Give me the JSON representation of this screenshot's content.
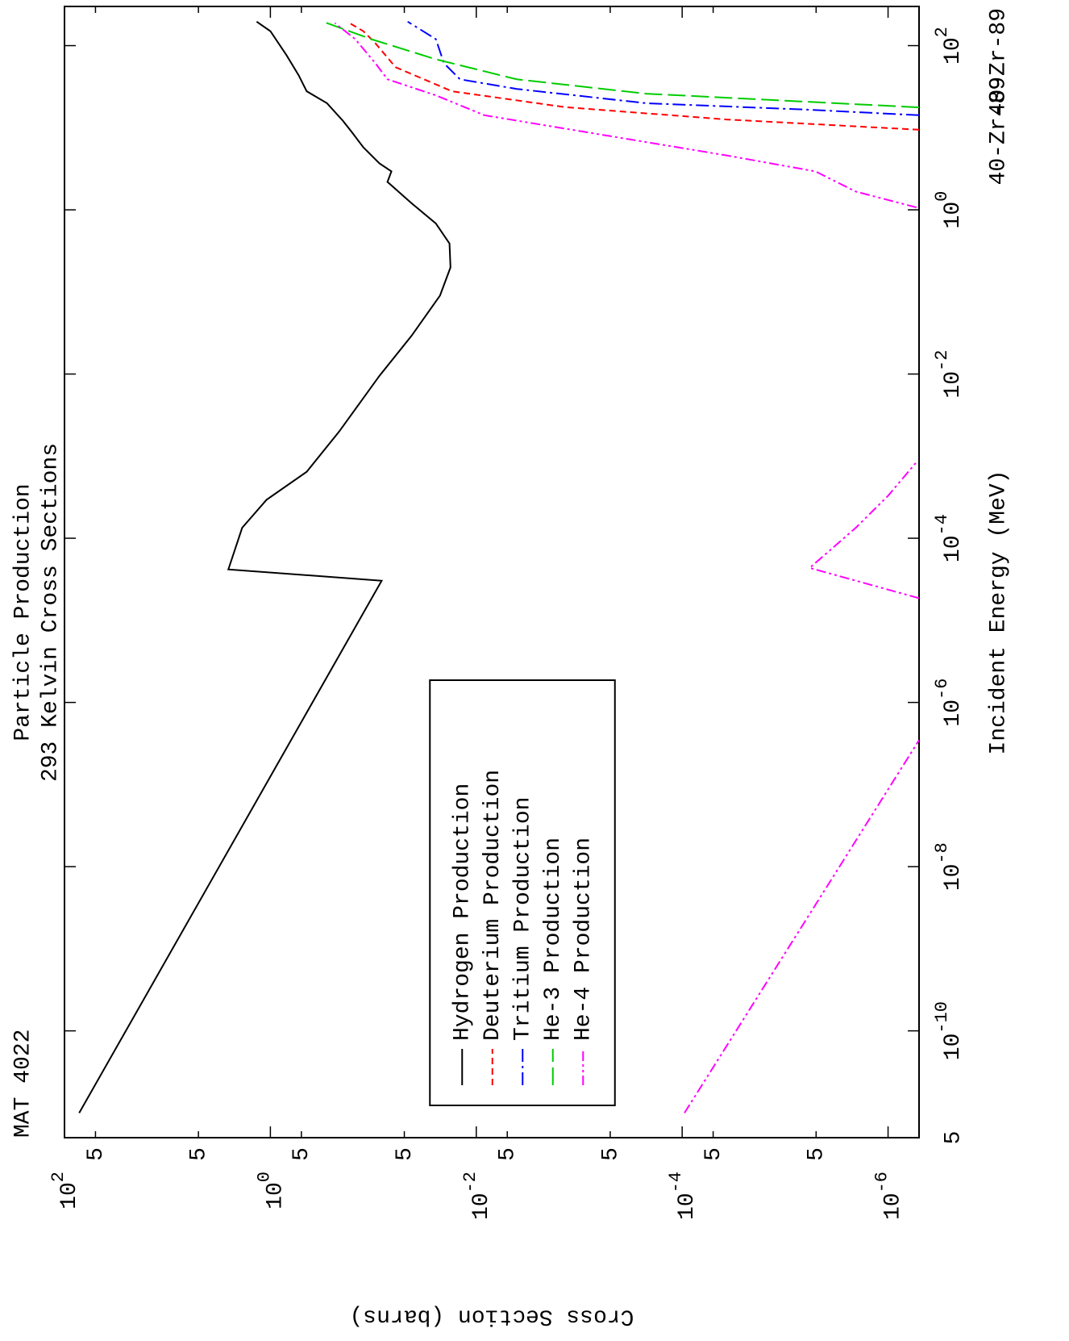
{
  "chart_data": {
    "type": "line",
    "title": "Particle Production",
    "subtitle": "293 Kelvin Cross Sections",
    "annotations": [
      "MAT 4022",
      "40-Zr-89",
      "40-Zr-89"
    ],
    "xlabel": "Incident Energy (MeV)",
    "ylabel": "Cross Section (barns)",
    "xscale": "log",
    "yscale": "log",
    "xlim": [
      5e-12,
      300
    ],
    "ylim": [
      5e-07,
      100
    ],
    "xticks": [
      {
        "value": 100,
        "label": "10^2"
      },
      {
        "value": 1,
        "label": "10^0"
      },
      {
        "value": 0.01,
        "label": "10^-2"
      },
      {
        "value": 0.0001,
        "label": "10^-4"
      },
      {
        "value": 1e-06,
        "label": "10^-6"
      },
      {
        "value": 1e-08,
        "label": "10^-8"
      },
      {
        "value": 1e-10,
        "label": "10^-10"
      },
      {
        "value": 5e-12,
        "label": "5"
      }
    ],
    "yticks": [
      {
        "value": 100,
        "label": "10^2"
      },
      {
        "value": 50,
        "label": "5"
      },
      {
        "value": 5,
        "label": "5"
      },
      {
        "value": 1,
        "label": "10^0"
      },
      {
        "value": 0.5,
        "label": "5"
      },
      {
        "value": 0.05,
        "label": "5"
      },
      {
        "value": 0.01,
        "label": "10^-2"
      },
      {
        "value": 0.005,
        "label": "5"
      },
      {
        "value": 0.0005,
        "label": "5"
      },
      {
        "value": 0.0001,
        "label": "10^-4"
      },
      {
        "value": 5e-05,
        "label": "5"
      },
      {
        "value": 5e-06,
        "label": "5"
      },
      {
        "value": 1e-06,
        "label": "10^-6"
      }
    ],
    "legend": "center left",
    "series": [
      {
        "name": "Hydrogen Production",
        "color": "#000000",
        "x": [
          1e-11,
          3.04e-05,
          4.17e-05,
          0.000134,
          0.000294,
          0.000645,
          0.00199,
          0.0095,
          0.0294,
          0.0904,
          0.199,
          0.389,
          0.682,
          1.2,
          2.19,
          2.94,
          3.68,
          5.77,
          9.04,
          12.1,
          19.9,
          27.8,
          43.5,
          76.4,
          150,
          196
        ],
        "values": [
          72,
          0.083,
          2.56,
          1.88,
          1.09,
          0.444,
          0.215,
          0.0873,
          0.0424,
          0.0225,
          0.0178,
          0.0182,
          0.0247,
          0.0424,
          0.0729,
          0.0667,
          0.0873,
          0.125,
          0.164,
          0.197,
          0.282,
          0.444,
          0.531,
          0.697,
          1.0,
          1.36
        ]
      },
      {
        "name": "Deuterium Production",
        "color": "#ff0000",
        "x": [
          9.46,
          12.6,
          17.8,
          27.8,
          54.6,
          107,
          150,
          196
        ],
        "values": [
          5e-07,
          3.7e-05,
          0.00137,
          0.0172,
          0.0608,
          0.0955,
          0.125,
          0.18
        ]
      },
      {
        "name": "Tritium Production",
        "color": "#0000ff",
        "x": [
          14.2,
          16.6,
          19.9,
          29.7,
          38.9,
          61,
          120,
          196
        ],
        "values": [
          5e-07,
          6.08e-06,
          0.000225,
          0.00405,
          0.0144,
          0.0206,
          0.0247,
          0.0464
        ]
      },
      {
        "name": "He-3 Production",
        "color": "#00cc00",
        "x": [
          17.7,
          20.7,
          26,
          38.9,
          68.2,
          120,
          196
        ],
        "values": [
          5e-07,
          6.08e-06,
          0.000225,
          0.00405,
          0.0247,
          0.105,
          0.309
        ]
      },
      {
        "name": "He-4 Production",
        "color": "#ff00ff",
        "x": [
          1e-11,
          3.47e-07,
          null,
          1.86e-05,
          4.35e-05,
          0.000134,
          0.000329,
          0.000845,
          null,
          1.07,
          1.67,
          2.94,
          4.6,
          9.04,
          14.2,
          24.8,
          38.9,
          61,
          120,
          188
        ],
        "values": [
          9.5e-05,
          5e-07,
          null,
          5e-07,
          5.77e-06,
          2.06e-06,
          1e-06,
          5.3e-07,
          null,
          5.3e-07,
          2.06e-06,
          5.08e-06,
          3.71e-05,
          0.000955,
          0.00835,
          0.0247,
          0.0729,
          0.0955,
          0.15,
          0.236
        ]
      }
    ]
  }
}
